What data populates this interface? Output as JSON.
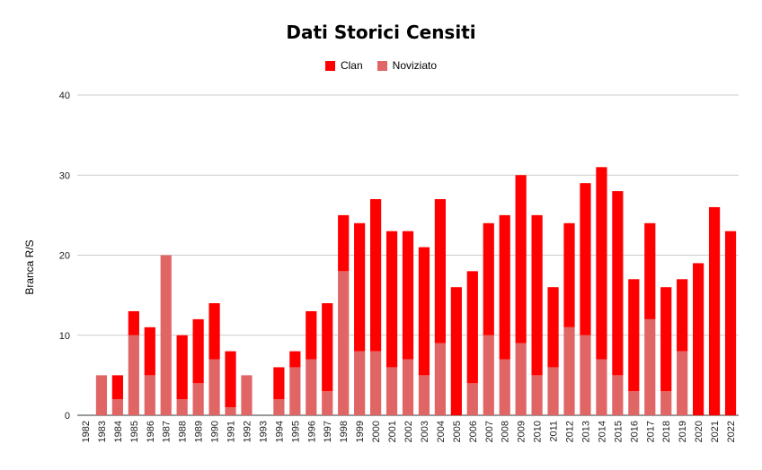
{
  "chart_data": {
    "type": "bar",
    "stacked": true,
    "title": "Dati Storici Censiti",
    "ylabel": "Branca R/S",
    "xlabel": "",
    "ylim": [
      0,
      40
    ],
    "yticks": [
      0,
      10,
      20,
      30,
      40
    ],
    "grid": true,
    "legend_position": "top-center",
    "categories": [
      "1982",
      "1983",
      "1984",
      "1985",
      "1986",
      "1987",
      "1988",
      "1989",
      "1990",
      "1991",
      "1992",
      "1993",
      "1994",
      "1995",
      "1996",
      "1997",
      "1998",
      "1999",
      "2000",
      "2001",
      "2002",
      "2003",
      "2004",
      "2005",
      "2006",
      "2007",
      "2008",
      "2009",
      "2010",
      "2011",
      "2012",
      "2013",
      "2014",
      "2015",
      "2016",
      "2017",
      "2018",
      "2019",
      "2020",
      "2021",
      "2022"
    ],
    "series": [
      {
        "name": "Noviziato",
        "color": "#e06666",
        "values": [
          0,
          5,
          2,
          10,
          5,
          20,
          2,
          4,
          7,
          1,
          5,
          0,
          2,
          6,
          7,
          3,
          18,
          8,
          8,
          6,
          7,
          5,
          9,
          0,
          4,
          10,
          7,
          9,
          5,
          6,
          11,
          10,
          7,
          5,
          3,
          12,
          3,
          8,
          0,
          0,
          0
        ]
      },
      {
        "name": "Clan",
        "color": "#ff0000",
        "values": [
          0,
          0,
          3,
          3,
          6,
          0,
          8,
          8,
          7,
          7,
          0,
          0,
          4,
          2,
          6,
          11,
          7,
          16,
          19,
          17,
          16,
          16,
          18,
          16,
          14,
          14,
          18,
          21,
          20,
          10,
          13,
          19,
          24,
          23,
          14,
          12,
          13,
          9,
          19,
          26,
          23
        ]
      }
    ]
  }
}
